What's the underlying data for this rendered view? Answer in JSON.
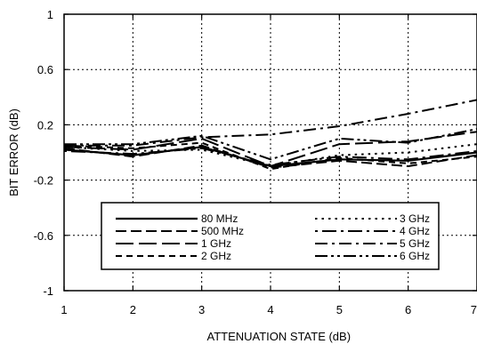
{
  "chart_data": {
    "type": "line",
    "xlabel": "ATTENUATION STATE (dB)",
    "ylabel": "BIT ERROR (dB)",
    "xlim": [
      1,
      7
    ],
    "ylim": [
      -1,
      1
    ],
    "x_ticks": [
      1,
      2,
      3,
      4,
      5,
      6,
      7
    ],
    "y_ticks": [
      1,
      0.6,
      0.2,
      -0.2,
      -0.6,
      -1
    ],
    "y_tick_labels": [
      "1",
      "0.6",
      "0.2",
      "-0.2",
      "-0.6",
      "-1"
    ],
    "grid": true,
    "legend_position": "bottom-center",
    "x": [
      1,
      2,
      3,
      4,
      5,
      6,
      7
    ],
    "series": [
      {
        "name": "80 MHz",
        "dash": "solid",
        "stroke_width": 2.2,
        "values": [
          0.02,
          -0.02,
          0.04,
          -0.1,
          -0.05,
          -0.06,
          0.0
        ]
      },
      {
        "name": "500 MHz",
        "dash": "dash-medium",
        "stroke_width": 2.0,
        "values": [
          0.03,
          -0.03,
          0.05,
          -0.11,
          -0.06,
          -0.1,
          -0.02
        ]
      },
      {
        "name": "1 GHz",
        "dash": "dash-long",
        "stroke_width": 2.0,
        "values": [
          0.04,
          0.02,
          0.1,
          -0.1,
          0.06,
          0.08,
          0.15
        ]
      },
      {
        "name": "2 GHz",
        "dash": "dash-short",
        "stroke_width": 2.0,
        "values": [
          0.05,
          0.03,
          0.07,
          -0.12,
          -0.04,
          -0.08,
          -0.03
        ]
      },
      {
        "name": "3 GHz",
        "dash": "dotted",
        "stroke_width": 2.0,
        "values": [
          0.04,
          0.01,
          0.02,
          -0.1,
          -0.02,
          0.0,
          0.06
        ]
      },
      {
        "name": "4 GHz",
        "dash": "dot-long",
        "stroke_width": 2.0,
        "values": [
          0.01,
          -0.01,
          0.03,
          -0.09,
          -0.03,
          -0.05,
          0.01
        ]
      },
      {
        "name": "5 GHz",
        "dash": "dash-dot",
        "stroke_width": 2.0,
        "values": [
          0.05,
          0.05,
          0.11,
          0.13,
          0.19,
          0.28,
          0.38
        ]
      },
      {
        "name": "6 GHz",
        "dash": "dash-dot-dot",
        "stroke_width": 2.0,
        "values": [
          0.06,
          0.06,
          0.12,
          -0.05,
          0.1,
          0.07,
          0.17
        ]
      }
    ]
  }
}
